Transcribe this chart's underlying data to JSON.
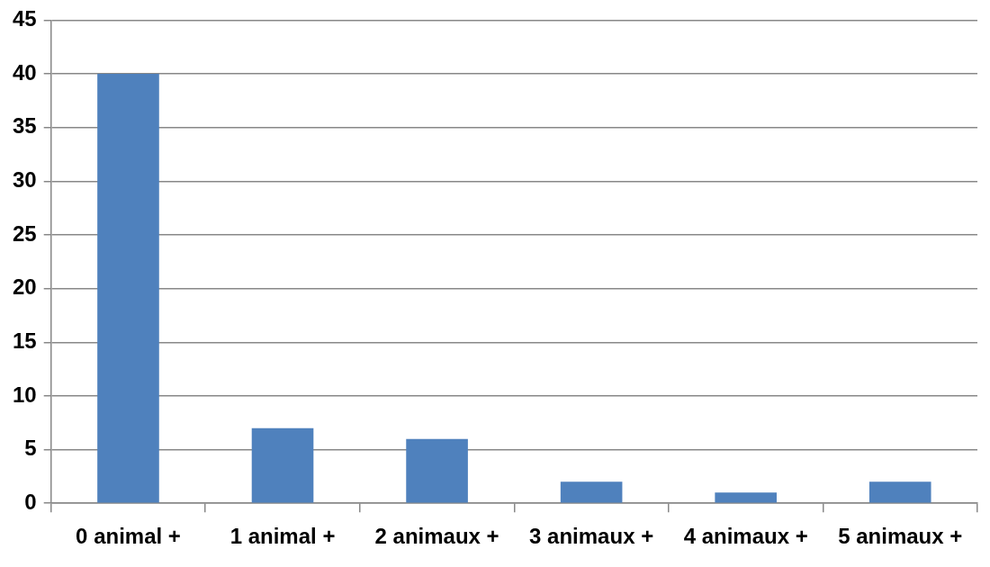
{
  "chart_data": {
    "type": "bar",
    "categories": [
      "0 animal +",
      "1 animal +",
      "2 animaux +",
      "3 animaux +",
      "4 animaux +",
      "5 animaux +"
    ],
    "values": [
      40,
      7,
      6,
      2,
      1,
      2
    ],
    "color": "#4f81bd",
    "ylim": [
      0,
      45
    ],
    "yticks": [
      0,
      5,
      10,
      15,
      20,
      25,
      30,
      35,
      40,
      45
    ],
    "grid": "y",
    "legend": false
  }
}
